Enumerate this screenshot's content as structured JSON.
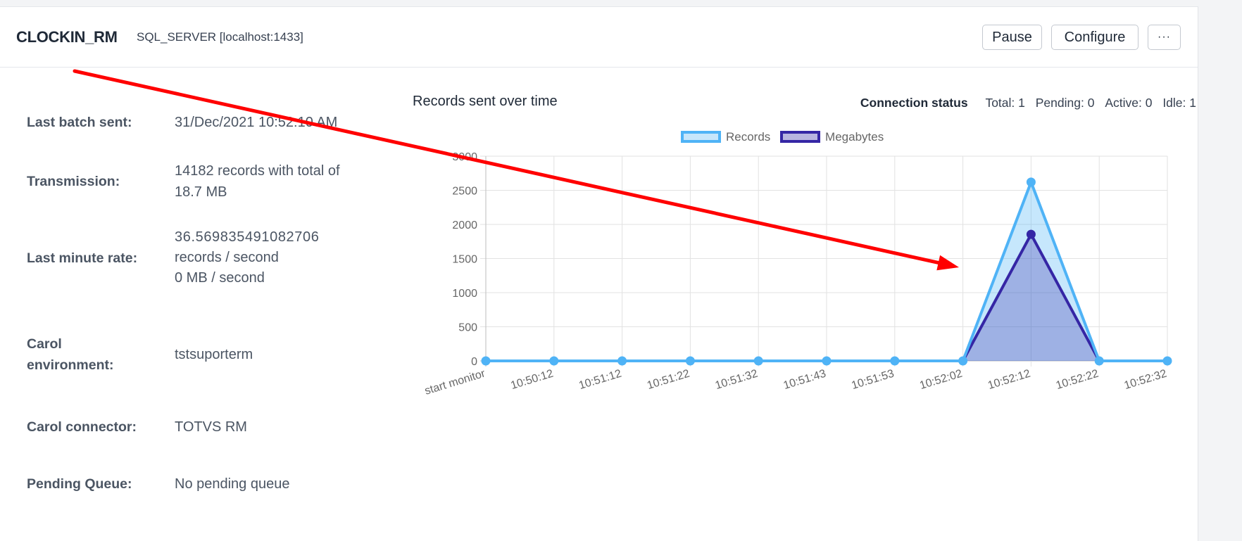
{
  "header": {
    "title": "CLOCKIN_RM",
    "subtitle": "SQL_SERVER [localhost:1433]",
    "buttons": {
      "pause": "Pause",
      "configure": "Configure",
      "more": "···"
    }
  },
  "details": [
    {
      "label": "Last batch sent:",
      "value": [
        "31/Dec/2021 10:52:10 AM"
      ]
    },
    {
      "label": "Transmission:",
      "value": [
        "14182 records with total of",
        "18.7 MB"
      ]
    },
    {
      "label": "Last minute rate:",
      "value": [
        "36.569835491082706",
        "records / second",
        "0 MB / second"
      ]
    },
    {
      "label": [
        "Carol",
        "environment:"
      ],
      "value": [
        "tstsuporterm"
      ]
    },
    {
      "label": "Carol connector:",
      "value": [
        "TOTVS RM"
      ]
    },
    {
      "label": "Pending Queue:",
      "value": [
        "No pending queue"
      ]
    }
  ],
  "chart_panel": {
    "title": "Records sent over time",
    "connection_status": {
      "label": "Connection status",
      "total": "Total: 1",
      "pending": "Pending: 0",
      "active": "Active: 0",
      "idle": "Idle: 1"
    }
  },
  "chart_data": {
    "type": "area",
    "title": "Records sent over time",
    "xlabel": "",
    "ylabel": "",
    "ylim": [
      0,
      3000
    ],
    "yticks": [
      0,
      500,
      1000,
      1500,
      2000,
      2500,
      3000
    ],
    "grid": true,
    "legend_position": "top",
    "categories": [
      "start monitor",
      "10:50:12",
      "10:51:12",
      "10:51:22",
      "10:51:32",
      "10:51:43",
      "10:51:53",
      "10:52:02",
      "10:52:12",
      "10:52:22",
      "10:52:32"
    ],
    "series": [
      {
        "name": "Records",
        "values": [
          0,
          0,
          0,
          0,
          0,
          0,
          0,
          0,
          2620,
          0,
          0
        ],
        "color": "#4fb3f6",
        "fill": "#c6e6fb"
      },
      {
        "name": "Megabytes",
        "values": [
          0,
          0,
          0,
          0,
          0,
          0,
          0,
          0,
          1855,
          0,
          0
        ],
        "color": "#3526a5",
        "fill": "#b8b4e0"
      }
    ]
  },
  "annotation": {
    "type": "arrow",
    "color": "#ff0000",
    "from": [
      106,
      101
    ],
    "to": [
      1362,
      380
    ]
  }
}
